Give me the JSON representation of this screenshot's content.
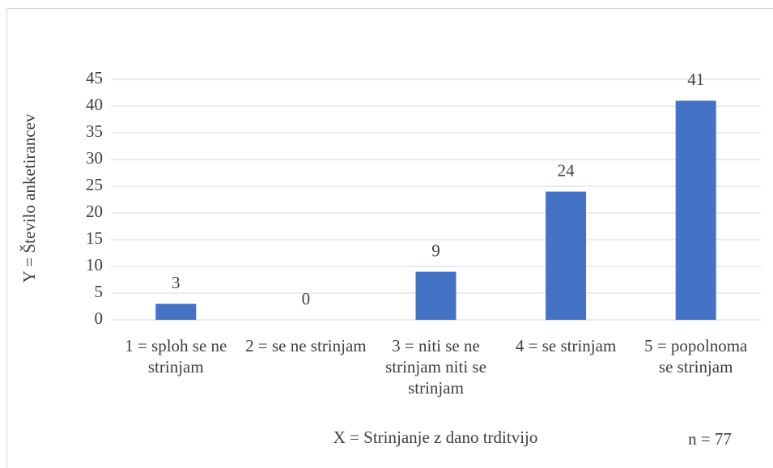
{
  "chart_data": {
    "type": "bar",
    "categories": [
      "1 = sploh se ne strinjam",
      "2 = se ne strinjam",
      "3 = niti se ne strinjam niti se strinjam",
      "4 = se strinjam",
      "5 = popolnoma se strinjam"
    ],
    "values": [
      3,
      0,
      9,
      24,
      41
    ],
    "color": "#4472c4",
    "ylim": [
      0,
      45
    ],
    "yticks": [
      0,
      5,
      10,
      15,
      20,
      25,
      30,
      35,
      40,
      45
    ],
    "grid": true,
    "xlabel": "X = Strinjanje z dano trditvijo",
    "ylabel": "Y = Število anketirancev",
    "annotation": "n = 77"
  }
}
